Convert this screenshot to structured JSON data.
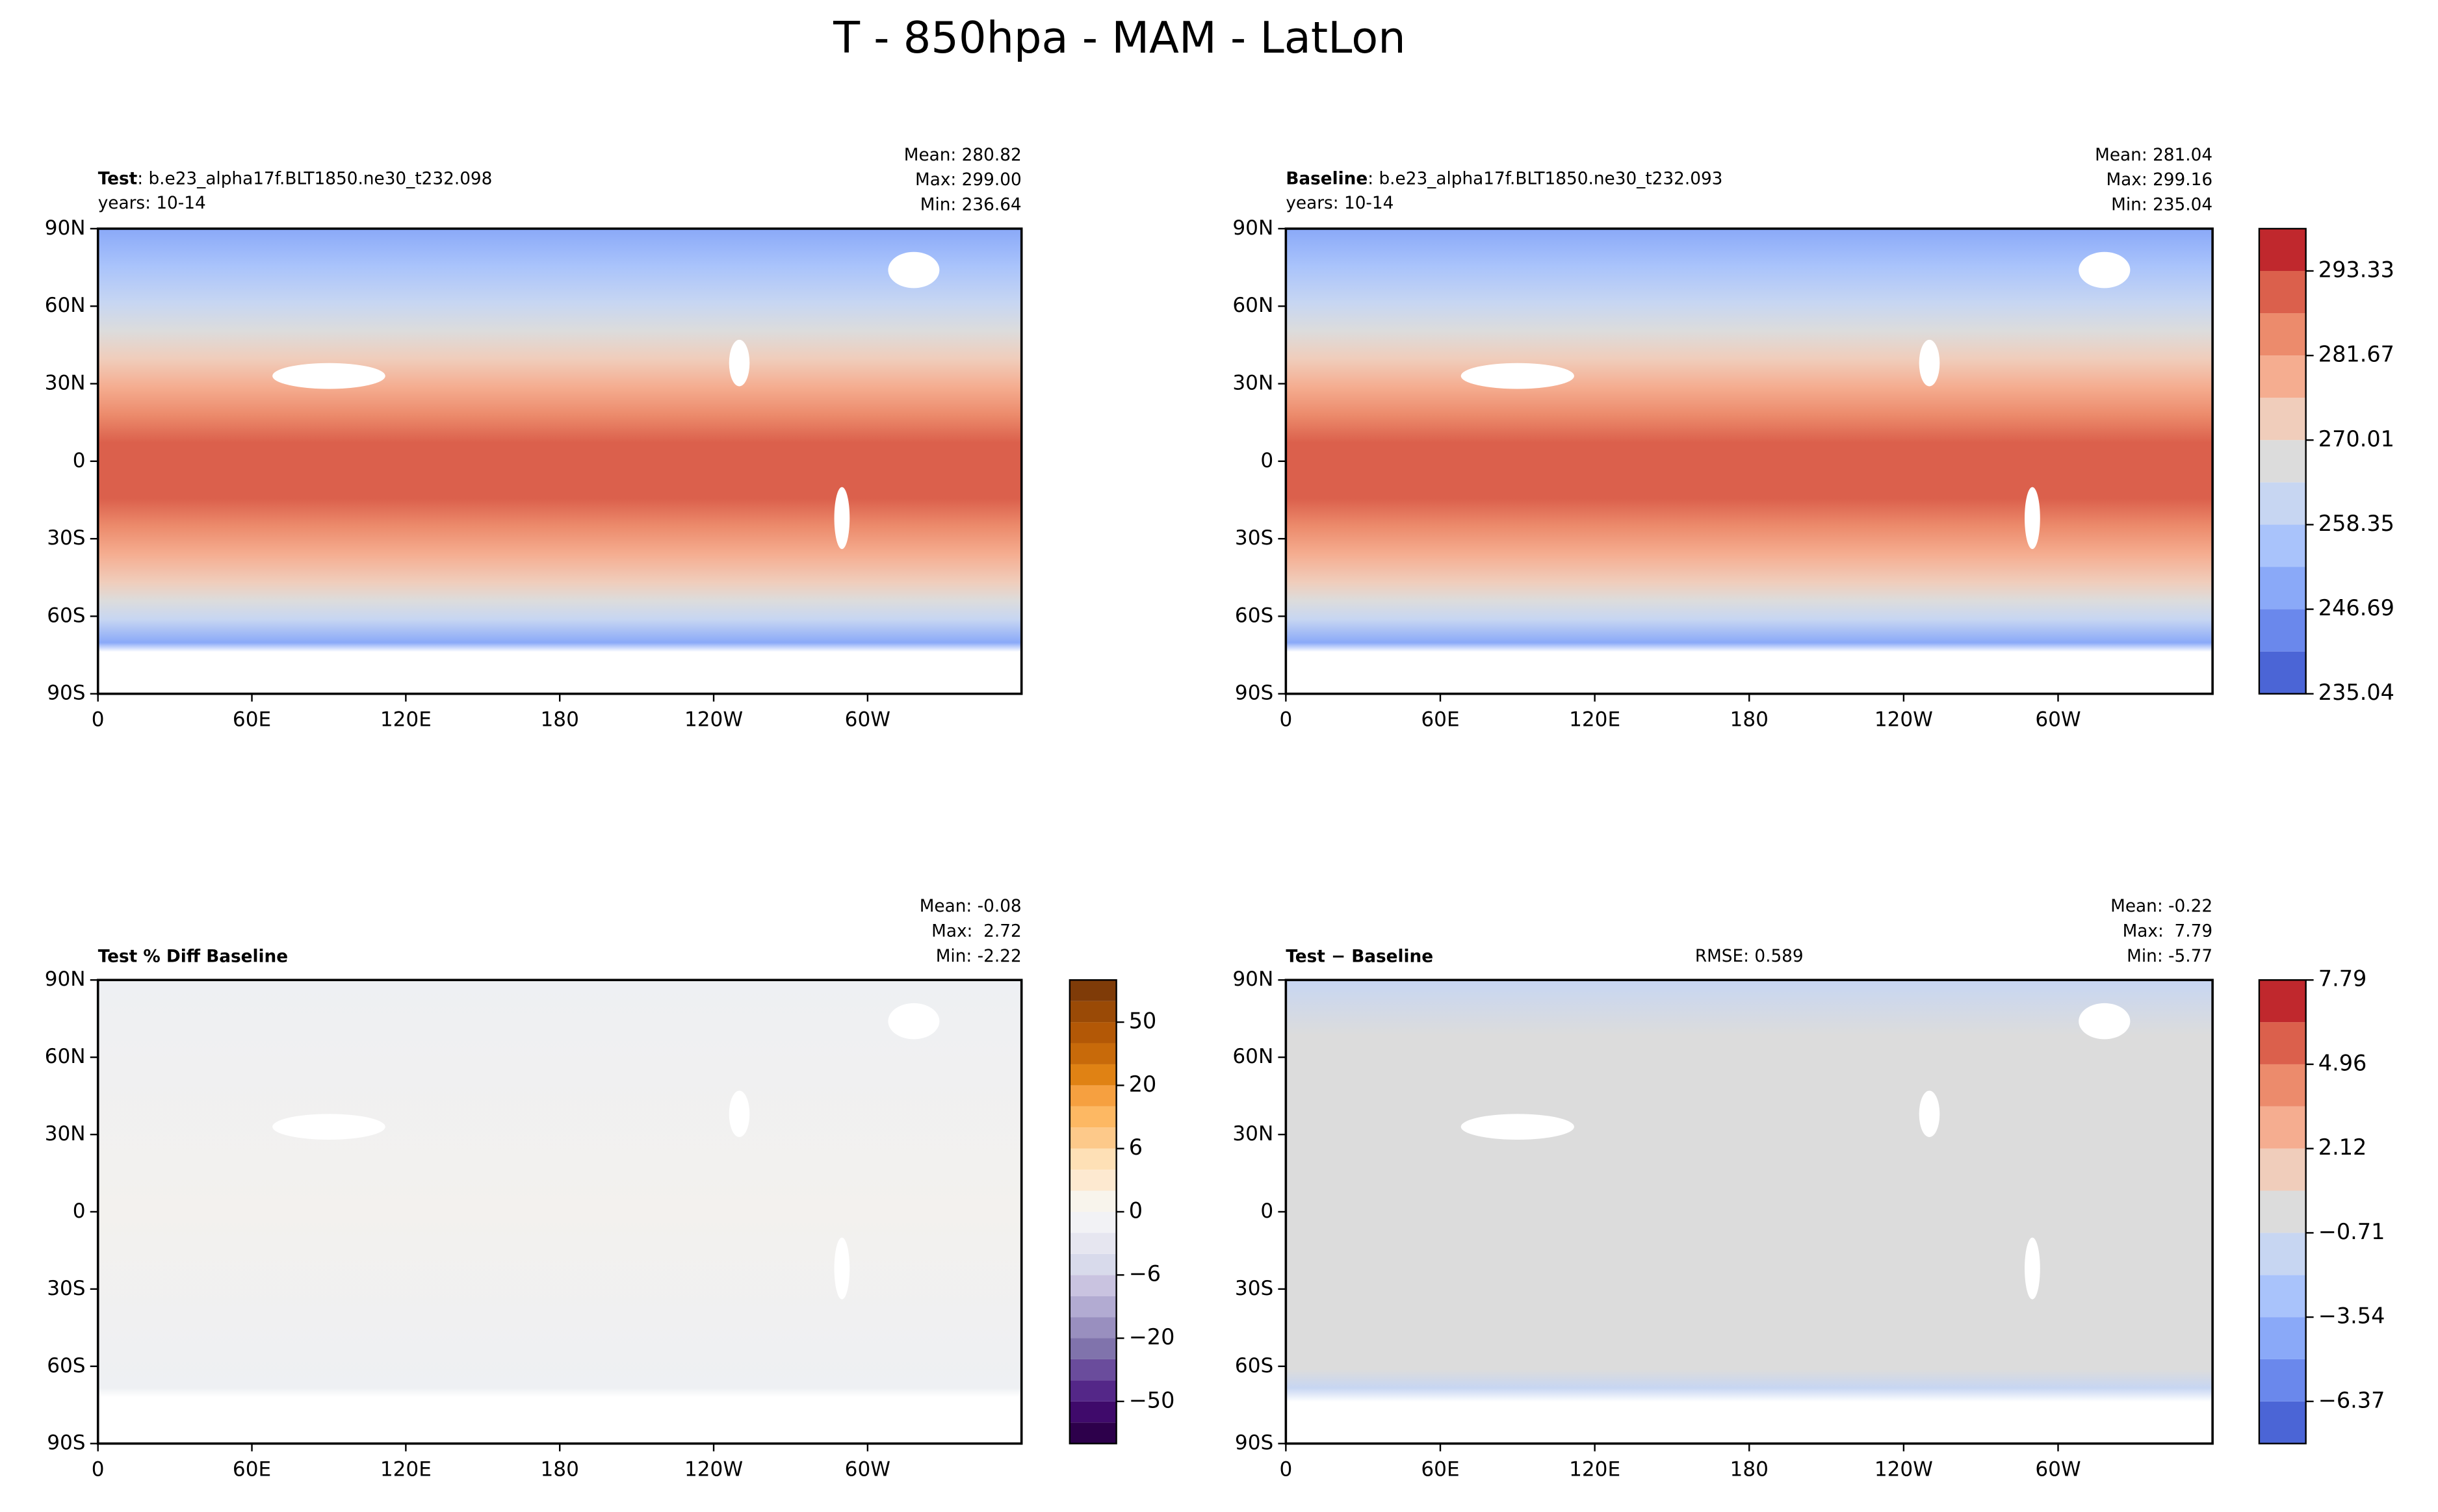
{
  "title": "T - 850hpa - MAM - LatLon",
  "chart_data": [
    {
      "type": "contour-map",
      "title": "Test",
      "case": ": b.e23_alpha17f.BLT1850.ne30_t232.098",
      "subtitle": "years: 10-14",
      "stats": [
        "Mean: 280.82",
        "Max: 299.00",
        "Min: 236.64"
      ],
      "xlim": [
        0,
        360
      ],
      "ylim": [
        -90,
        90
      ],
      "xticks": [
        0,
        {
          "value": 60,
          "label": "60E"
        },
        {
          "value": 120,
          "label": "120E"
        },
        180,
        {
          "value": 240,
          "label": "120W"
        },
        {
          "value": 300,
          "label": "60W"
        }
      ],
      "yticks": [
        {
          "value": -90,
          "label": "90S"
        },
        {
          "value": -60,
          "label": "60S"
        },
        {
          "value": -30,
          "label": "30S"
        },
        0,
        {
          "value": 30,
          "label": "30N"
        },
        {
          "value": 60,
          "label": "60N"
        },
        {
          "value": 90,
          "label": "90N"
        }
      ]
    },
    {
      "type": "contour-map",
      "title": "Baseline",
      "case": ": b.e23_alpha17f.BLT1850.ne30_t232.093",
      "subtitle": "years: 10-14",
      "stats": [
        "Mean: 281.04",
        "Max: 299.16",
        "Min: 235.04"
      ],
      "xlim": [
        0,
        360
      ],
      "ylim": [
        -90,
        90
      ],
      "xticks": [
        0,
        {
          "value": 60,
          "label": "60E"
        },
        {
          "value": 120,
          "label": "120E"
        },
        180,
        {
          "value": 240,
          "label": "120W"
        },
        {
          "value": 300,
          "label": "60W"
        }
      ],
      "yticks": [
        {
          "value": -90,
          "label": "90S"
        },
        {
          "value": -60,
          "label": "60S"
        },
        {
          "value": -30,
          "label": "30S"
        },
        0,
        {
          "value": 30,
          "label": "30N"
        },
        {
          "value": 60,
          "label": "60N"
        },
        {
          "value": 90,
          "label": "90N"
        }
      ],
      "colorbar": {
        "levels": [
          235.04,
          240.87,
          246.69,
          252.52,
          258.35,
          264.18,
          270.01,
          275.84,
          281.67,
          287.5,
          293.33,
          299.16
        ],
        "colors": [
          "#4b65d6",
          "#6a88ec",
          "#8aa9f8",
          "#a9c3fb",
          "#c7d6f2",
          "#dcdcdc",
          "#f0cdbb",
          "#f5ad90",
          "#ec8b6c",
          "#db604c",
          "#c0282d"
        ],
        "ticks": [
          235.04,
          246.69,
          258.35,
          270.01,
          281.67,
          293.33
        ]
      }
    },
    {
      "type": "contour-map",
      "title": "Test % Diff Baseline",
      "stats": [
        "Mean: -0.08",
        "Max:  2.72",
        "Min: -2.22"
      ],
      "xlim": [
        0,
        360
      ],
      "ylim": [
        -90,
        90
      ],
      "xticks": [
        0,
        {
          "value": 60,
          "label": "60E"
        },
        {
          "value": 120,
          "label": "120E"
        },
        180,
        {
          "value": 240,
          "label": "120W"
        },
        {
          "value": 300,
          "label": "60W"
        }
      ],
      "yticks": [
        {
          "value": -90,
          "label": "90S"
        },
        {
          "value": -60,
          "label": "60S"
        },
        {
          "value": -30,
          "label": "30S"
        },
        0,
        {
          "value": 30,
          "label": "30N"
        },
        {
          "value": 60,
          "label": "60N"
        },
        {
          "value": 90,
          "label": "90N"
        }
      ],
      "colorbar": {
        "levels": [
          -100,
          -75,
          -50,
          -40,
          -30,
          -20,
          -15,
          -10,
          -6,
          -4,
          -2,
          0,
          2,
          4,
          6,
          10,
          15,
          20,
          30,
          40,
          50,
          75,
          100
        ],
        "colors": [
          "#2d004b",
          "#3f0a6b",
          "#542788",
          "#6a4c9c",
          "#8073ac",
          "#998fbf",
          "#b2abd2",
          "#c9c3e0",
          "#d8daeb",
          "#e6e6f0",
          "#f2f2f5",
          "#f8f4ec",
          "#fde9d0",
          "#fee0b6",
          "#fdc98a",
          "#fdb863",
          "#f6a040",
          "#e08214",
          "#c86a0a",
          "#b35806",
          "#9a4a06",
          "#7f3b08"
        ],
        "ticks": [
          {
            "value": -50,
            "label": "−50"
          },
          {
            "value": -20,
            "label": "−20"
          },
          {
            "value": -6,
            "label": "−6"
          },
          0,
          6,
          20,
          50
        ]
      }
    },
    {
      "type": "contour-map",
      "title": "Test − Baseline",
      "rmse": "RMSE: 0.589",
      "stats": [
        "Mean: -0.22",
        "Max:  7.79",
        "Min: -5.77"
      ],
      "xlim": [
        0,
        360
      ],
      "ylim": [
        -90,
        90
      ],
      "xticks": [
        0,
        {
          "value": 60,
          "label": "60E"
        },
        {
          "value": 120,
          "label": "120E"
        },
        180,
        {
          "value": 240,
          "label": "120W"
        },
        {
          "value": 300,
          "label": "60W"
        }
      ],
      "yticks": [
        {
          "value": -90,
          "label": "90S"
        },
        {
          "value": -60,
          "label": "60S"
        },
        {
          "value": -30,
          "label": "30S"
        },
        0,
        {
          "value": 30,
          "label": "30N"
        },
        {
          "value": 60,
          "label": "60N"
        },
        {
          "value": 90,
          "label": "90N"
        }
      ],
      "colorbar": {
        "levels": [
          -7.79,
          -6.37,
          -4.96,
          -3.54,
          -2.12,
          -0.71,
          0.71,
          2.12,
          3.54,
          4.96,
          6.37,
          7.79
        ],
        "colors": [
          "#4b65d6",
          "#6a88ec",
          "#8aa9f8",
          "#a9c3fb",
          "#c7d6f2",
          "#dcdcdc",
          "#f0cdbb",
          "#f5ad90",
          "#ec8b6c",
          "#db604c",
          "#c0282d"
        ],
        "ticks": [
          {
            "value": -6.37,
            "label": "−6.37"
          },
          {
            "value": -3.54,
            "label": "−3.54"
          },
          {
            "value": -0.71,
            "label": "−0.71"
          },
          2.12,
          4.96,
          7.79
        ]
      }
    }
  ]
}
